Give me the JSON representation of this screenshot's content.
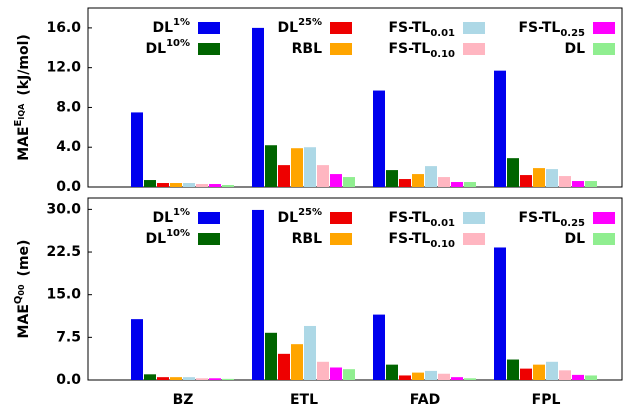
{
  "chart_data": [
    {
      "type": "bar",
      "ylabel": {
        "text": "MAE",
        "sup": "E",
        "sup_sub": "IQA",
        "unit": "(kJ/mol)"
      },
      "categories": [
        null,
        null,
        null,
        null
      ],
      "ylim": [
        0,
        18
      ],
      "yticks": [
        {
          "value": 0,
          "label": "0.0"
        },
        {
          "value": 4,
          "label": "4.0"
        },
        {
          "value": 8,
          "label": "8.0"
        },
        {
          "value": 12,
          "label": "12.0"
        },
        {
          "value": 16,
          "label": "16.0"
        }
      ],
      "grid": false,
      "legend": "top",
      "series": [
        {
          "name": {
            "text": "DL",
            "sup": "1%"
          },
          "color": "#0000ee",
          "values": [
            7.5,
            16.0,
            9.7,
            11.7
          ]
        },
        {
          "name": {
            "text": "DL",
            "sup": "10%"
          },
          "color": "#006400",
          "values": [
            0.7,
            4.2,
            1.7,
            2.9
          ]
        },
        {
          "name": {
            "text": "DL",
            "sup": "25%"
          },
          "color": "#ee0000",
          "values": [
            0.4,
            2.2,
            0.8,
            1.2
          ]
        },
        {
          "name": {
            "text": "RBL"
          },
          "color": "#ffa500",
          "values": [
            0.4,
            3.9,
            1.3,
            1.9
          ]
        },
        {
          "name": {
            "text": "FS-TL",
            "sub": "0.01"
          },
          "color": "#add8e6",
          "values": [
            0.4,
            4.0,
            2.1,
            1.8
          ]
        },
        {
          "name": {
            "text": "FS-TL",
            "sub": "0.10"
          },
          "color": "#ffb6c1",
          "values": [
            0.3,
            2.2,
            1.0,
            1.1
          ]
        },
        {
          "name": {
            "text": "FS-TL",
            "sub": "0.25"
          },
          "color": "#ff00ff",
          "values": [
            0.3,
            1.3,
            0.5,
            0.6
          ]
        },
        {
          "name": {
            "text": "DL"
          },
          "color": "#90ee90",
          "values": [
            0.2,
            1.0,
            0.5,
            0.6
          ]
        }
      ]
    },
    {
      "type": "bar",
      "ylabel": {
        "text": "MAE",
        "sup": "Q",
        "sup_sub": "00",
        "unit": "(me)"
      },
      "categories": [
        "BZ",
        "ETL",
        "FAD",
        "FPL"
      ],
      "ylim": [
        0,
        32
      ],
      "yticks": [
        {
          "value": 0,
          "label": "0.0"
        },
        {
          "value": 7.5,
          "label": "7.5"
        },
        {
          "value": 15,
          "label": "15.0"
        },
        {
          "value": 22.5,
          "label": "22.5"
        },
        {
          "value": 30,
          "label": "30.0"
        }
      ],
      "grid": false,
      "legend": "top",
      "series": [
        {
          "name": {
            "text": "DL",
            "sup": "1%"
          },
          "color": "#0000ee",
          "values": [
            10.7,
            29.9,
            11.5,
            23.3
          ]
        },
        {
          "name": {
            "text": "DL",
            "sup": "10%"
          },
          "color": "#006400",
          "values": [
            1.0,
            8.3,
            2.7,
            3.6
          ]
        },
        {
          "name": {
            "text": "DL",
            "sup": "25%"
          },
          "color": "#ee0000",
          "values": [
            0.5,
            4.6,
            0.8,
            2.0
          ]
        },
        {
          "name": {
            "text": "RBL"
          },
          "color": "#ffa500",
          "values": [
            0.5,
            6.3,
            1.3,
            2.7
          ]
        },
        {
          "name": {
            "text": "FS-TL",
            "sub": "0.01"
          },
          "color": "#add8e6",
          "values": [
            0.5,
            9.5,
            1.6,
            3.2
          ]
        },
        {
          "name": {
            "text": "FS-TL",
            "sub": "0.10"
          },
          "color": "#ffb6c1",
          "values": [
            0.3,
            3.2,
            1.1,
            1.7
          ]
        },
        {
          "name": {
            "text": "FS-TL",
            "sub": "0.25"
          },
          "color": "#ff00ff",
          "values": [
            0.3,
            2.2,
            0.5,
            0.9
          ]
        },
        {
          "name": {
            "text": "DL"
          },
          "color": "#90ee90",
          "values": [
            0.2,
            1.9,
            0.3,
            0.8
          ]
        }
      ]
    }
  ]
}
